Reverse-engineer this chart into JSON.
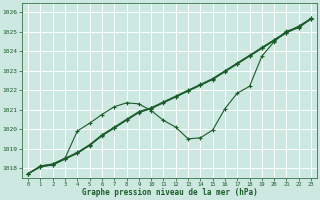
{
  "xlabel": "Graphe pression niveau de la mer (hPa)",
  "bg_color": "#cce8e0",
  "grid_color": "#ffffff",
  "line_color": "#1a5c2a",
  "xlim": [
    -0.5,
    23.5
  ],
  "ylim": [
    1017.5,
    1026.5
  ],
  "yticks": [
    1018,
    1019,
    1020,
    1021,
    1022,
    1023,
    1024,
    1025,
    1026
  ],
  "xticks": [
    0,
    1,
    2,
    3,
    4,
    5,
    6,
    7,
    8,
    9,
    10,
    11,
    12,
    13,
    14,
    15,
    16,
    17,
    18,
    19,
    20,
    21,
    22,
    23
  ],
  "band1": [
    1017.7,
    1018.05,
    1018.15,
    1018.45,
    1018.75,
    1019.15,
    1019.65,
    1020.05,
    1020.45,
    1020.85,
    1021.05,
    1021.35,
    1021.65,
    1021.95,
    1022.25,
    1022.55,
    1022.95,
    1023.35,
    1023.75,
    1024.15,
    1024.55,
    1024.95,
    1025.25,
    1025.65
  ],
  "band2": [
    1017.7,
    1018.07,
    1018.17,
    1018.47,
    1018.77,
    1019.17,
    1019.67,
    1020.07,
    1020.47,
    1020.87,
    1021.07,
    1021.37,
    1021.67,
    1021.97,
    1022.27,
    1022.57,
    1022.97,
    1023.37,
    1023.77,
    1024.17,
    1024.57,
    1024.97,
    1025.27,
    1025.67
  ],
  "band3": [
    1017.7,
    1018.1,
    1018.2,
    1018.5,
    1018.8,
    1019.2,
    1019.7,
    1020.1,
    1020.5,
    1020.9,
    1021.1,
    1021.4,
    1021.7,
    1022.0,
    1022.3,
    1022.6,
    1023.0,
    1023.4,
    1023.8,
    1024.2,
    1024.6,
    1025.0,
    1025.3,
    1025.7
  ],
  "outlier": [
    1017.7,
    1018.1,
    1018.2,
    1018.5,
    1019.9,
    1020.3,
    1020.75,
    1021.15,
    1021.35,
    1021.3,
    1020.95,
    1020.45,
    1020.1,
    1019.5,
    1019.55,
    1019.95,
    1021.05,
    1021.85,
    1022.2,
    1023.75,
    1024.5,
    1025.05,
    1025.2,
    1025.7
  ]
}
